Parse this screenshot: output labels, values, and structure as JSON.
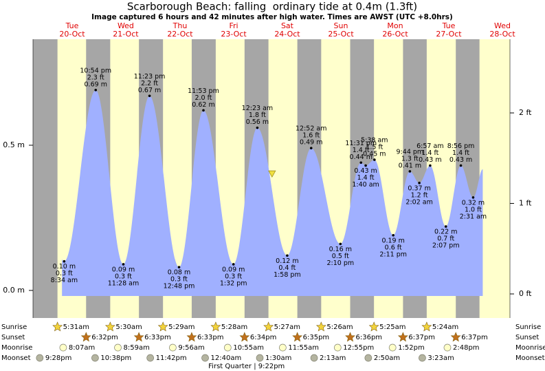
{
  "chart_data": {
    "type": "tide",
    "title": "Scarborough Beach: falling  ordinary tide at 0.4m (1.3ft)",
    "subtitle": "Image captured 6 hours and 42 minutes after high water. Times are AWST (UTC +8.0hrs)",
    "color": "#a0b0ff",
    "xlim": [
      -0.234,
      8.802
    ],
    "ylim": [
      -0.095,
      0.865
    ],
    "yticks": [
      {
        "value": 0,
        "label": "0.0 m"
      },
      {
        "value": 0.5,
        "label": "0.5 m"
      }
    ],
    "y2lim": [
      -0.266,
      2.814
    ],
    "y2ticks": [
      {
        "value": 0,
        "label": "0 ft"
      },
      {
        "value": 1,
        "label": "1 ft"
      },
      {
        "value": 2,
        "label": "2 ft"
      }
    ],
    "days": [
      {
        "x": 0.508,
        "weekday": "Tue",
        "date": "20-Oct"
      },
      {
        "x": 1.523,
        "weekday": "Wed",
        "date": "21-Oct"
      },
      {
        "x": 2.552,
        "weekday": "Thu",
        "date": "22-Oct"
      },
      {
        "x": 3.568,
        "weekday": "Fri",
        "date": "23-Oct"
      },
      {
        "x": 4.583,
        "weekday": "Sat",
        "date": "24-Oct"
      },
      {
        "x": 5.599,
        "weekday": "Sun",
        "date": "25-Oct"
      },
      {
        "x": 6.628,
        "weekday": "Mon",
        "date": "26-Oct"
      },
      {
        "x": 7.643,
        "weekday": "Tue",
        "date": "27-Oct"
      },
      {
        "x": 8.659,
        "weekday": "Wed",
        "date": "28-Oct"
      }
    ],
    "events": [
      {
        "x": 0.357,
        "value": 0.1,
        "value_label": "0.10 m",
        "ft_label": "0.3 ft",
        "time": "8:34 am"
      },
      {
        "x": 0.954,
        "value": 0.69,
        "value_label": "0.69 m",
        "ft_label": "2.3 ft",
        "time": "10:54 pm"
      },
      {
        "x": 1.478,
        "value": 0.09,
        "value_label": "0.09 m",
        "ft_label": "0.3 ft",
        "time": "11:28 am"
      },
      {
        "x": 1.974,
        "value": 0.67,
        "value_label": "0.67 m",
        "ft_label": "2.2 ft",
        "time": "11:23 pm"
      },
      {
        "x": 2.533,
        "value": 0.08,
        "value_label": "0.08 m",
        "ft_label": "0.3 ft",
        "time": "12:48 pm"
      },
      {
        "x": 2.995,
        "value": 0.62,
        "value_label": "0.62 m",
        "ft_label": "2.0 ft",
        "time": "11:53 pm"
      },
      {
        "x": 3.564,
        "value": 0.09,
        "value_label": "0.09 m",
        "ft_label": "0.3 ft",
        "time": "1:32 pm"
      },
      {
        "x": 4.016,
        "value": 0.56,
        "value_label": "0.56 m",
        "ft_label": "1.8 ft",
        "time": "12:23 am"
      },
      {
        "x": 4.582,
        "value": 0.12,
        "value_label": "0.12 m",
        "ft_label": "0.4 ft",
        "time": "1:58 pm"
      },
      {
        "x": 5.036,
        "value": 0.49,
        "value_label": "0.49 m",
        "ft_label": "1.6 ft",
        "time": "12:52 am"
      },
      {
        "x": 5.59,
        "value": 0.16,
        "value_label": "0.16 m",
        "ft_label": "0.5 ft",
        "time": "2:10 pm"
      },
      {
        "x": 5.98,
        "value": 0.44,
        "value_label": "0.44 m",
        "ft_label": "1.4 ft",
        "time": "11:31 pm"
      },
      {
        "x": 6.069,
        "value": 0.43,
        "value_label": "0.43 m",
        "ft_label": "1.4 ft",
        "time": "1:40 am"
      },
      {
        "x": 6.235,
        "value": 0.45,
        "value_label": "0.45 m",
        "ft_label": "1.5 ft",
        "time": "5:38 am"
      },
      {
        "x": 6.591,
        "value": 0.19,
        "value_label": "0.19 m",
        "ft_label": "0.6 ft",
        "time": "2:11 pm"
      },
      {
        "x": 6.906,
        "value": 0.41,
        "value_label": "0.41 m",
        "ft_label": "1.3 ft",
        "time": "9:44 pm"
      },
      {
        "x": 7.085,
        "value": 0.37,
        "value_label": "0.37 m",
        "ft_label": "1.2 ft",
        "time": "2:02 am"
      },
      {
        "x": 7.29,
        "value": 0.43,
        "value_label": "0.43 m",
        "ft_label": "1.4 ft",
        "time": "6:57 am"
      },
      {
        "x": 7.588,
        "value": 0.22,
        "value_label": "0.22 m",
        "ft_label": "0.7 ft",
        "time": "2:07 pm"
      },
      {
        "x": 7.872,
        "value": 0.43,
        "value_label": "0.43 m",
        "ft_label": "1.4 ft",
        "time": "8:56 pm"
      },
      {
        "x": 8.105,
        "value": 0.32,
        "value_label": "0.32 m",
        "ft_label": "1.0 ft",
        "time": "2:31 am"
      }
    ],
    "now": {
      "x": 4.295,
      "value": 0.4
    },
    "rows": [
      {
        "name": "Sunrise",
        "icon": "star",
        "color": "#f2d33c",
        "items": [
          {
            "x": 0.23,
            "time": "5:31am"
          },
          {
            "x": 1.229,
            "time": "5:30am"
          },
          {
            "x": 2.229,
            "time": "5:29am"
          },
          {
            "x": 3.228,
            "time": "5:28am"
          },
          {
            "x": 4.227,
            "time": "5:27am"
          },
          {
            "x": 5.226,
            "time": "5:26am"
          },
          {
            "x": 6.226,
            "time": "5:25am"
          },
          {
            "x": 7.225,
            "time": "5:24am"
          }
        ]
      },
      {
        "name": "Sunset",
        "icon": "star",
        "color": "#c0701c",
        "items": [
          {
            "x": 0.772,
            "time": "6:32pm"
          },
          {
            "x": 1.773,
            "time": "6:33pm"
          },
          {
            "x": 2.773,
            "time": "6:33pm"
          },
          {
            "x": 3.774,
            "time": "6:34pm"
          },
          {
            "x": 4.774,
            "time": "6:35pm"
          },
          {
            "x": 5.775,
            "time": "6:36pm"
          },
          {
            "x": 6.776,
            "time": "6:37pm"
          },
          {
            "x": 7.776,
            "time": "6:37pm"
          }
        ]
      },
      {
        "name": "Moonrise",
        "icon": "circle",
        "color": "#ffffc8",
        "items": [
          {
            "x": 0.338,
            "time": "8:07am"
          },
          {
            "x": 1.374,
            "time": "8:59am"
          },
          {
            "x": 2.414,
            "time": "9:56am"
          },
          {
            "x": 3.455,
            "time": "10:55am"
          },
          {
            "x": 4.497,
            "time": "11:55am"
          },
          {
            "x": 5.538,
            "time": "12:55pm"
          },
          {
            "x": 6.578,
            "time": "1:52pm"
          },
          {
            "x": 7.617,
            "time": "2:48pm"
          }
        ]
      },
      {
        "name": "Moonset",
        "icon": "circle",
        "color": "#b4b4a0",
        "items": [
          {
            "x": -0.106,
            "time": "9:28pm"
          },
          {
            "x": 0.943,
            "time": "10:38pm"
          },
          {
            "x": 1.988,
            "time": "11:42pm"
          },
          {
            "x": 3.028,
            "time": "12:40am"
          },
          {
            "x": 4.063,
            "time": "1:30am"
          },
          {
            "x": 5.092,
            "time": "2:13am"
          },
          {
            "x": 6.118,
            "time": "2:50am"
          },
          {
            "x": 7.141,
            "time": "3:23am"
          }
        ]
      }
    ],
    "moon_phase": {
      "x": 3.89,
      "label": "First Quarter | 9:22pm"
    }
  }
}
